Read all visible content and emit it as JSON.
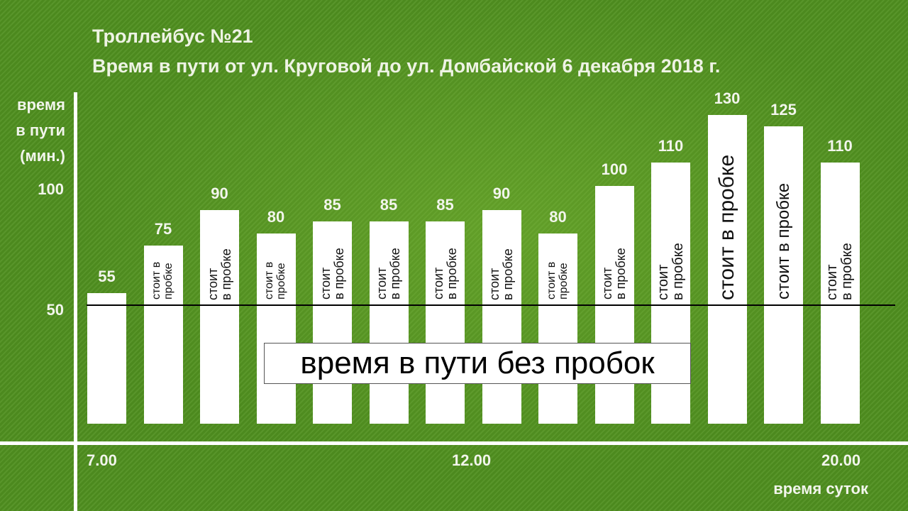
{
  "chart_data": {
    "type": "bar",
    "title": "Троллейбус №21",
    "subtitle": "Время в пути от ул. Круговой до ул. Домбайской 6 декабря 2018 г.",
    "ylabel_lines": [
      "время",
      "в пути",
      "(мин.)"
    ],
    "xlabel": "время суток",
    "y_ticks": [
      "100",
      "50"
    ],
    "x_ticks": [
      "7.00",
      "12.00",
      "20.00"
    ],
    "ylim": [
      0,
      100
    ],
    "values": [
      55,
      75,
      90,
      80,
      85,
      85,
      85,
      90,
      80,
      100,
      110,
      130,
      125,
      110
    ],
    "value_labels": [
      "55",
      "75",
      "90",
      "80",
      "85",
      "85",
      "85",
      "90",
      "80",
      "100",
      "110",
      "130",
      "125",
      "110"
    ],
    "bar_texts": [
      "",
      "стоит в\nпробке",
      "стоит\nв пробке",
      "стоит в\nпробке",
      "стоит\nв пробке",
      "стоит\nв пробке",
      "стоит\nв пробке",
      "стоит\nв пробке",
      "стоит в\nпробке",
      "стоит\nв пробке",
      "стоит\nв пробке",
      "стоит в пробке",
      "стоит в пробке",
      "стоит\nв пробке"
    ],
    "reference_line": {
      "value": 50,
      "label": "время в пути без пробок"
    },
    "grid": false
  }
}
